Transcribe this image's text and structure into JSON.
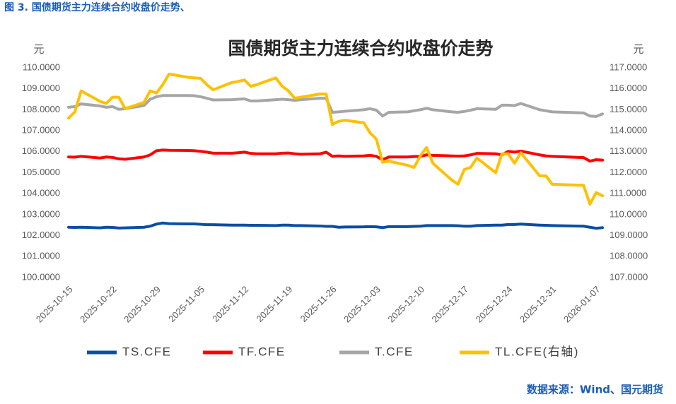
{
  "caption": "图 3. 国债期货主力连续合约收盘价走势、",
  "source": "数据来源：Wind、国元期货",
  "chart_data": {
    "type": "line",
    "title": "国债期货主力连续合约收盘价走势",
    "ylabel": "元",
    "y2label": "元",
    "grid": false,
    "legend": "bottom",
    "x": [
      "2025-10-15",
      "2025-10-16",
      "2025-10-17",
      "2025-10-20",
      "2025-10-21",
      "2025-10-22",
      "2025-10-23",
      "2025-10-24",
      "2025-10-27",
      "2025-10-28",
      "2025-10-29",
      "2025-10-30",
      "2025-10-31",
      "2025-11-03",
      "2025-11-04",
      "2025-11-05",
      "2025-11-06",
      "2025-11-07",
      "2025-11-10",
      "2025-11-11",
      "2025-11-12",
      "2025-11-13",
      "2025-11-14",
      "2025-11-17",
      "2025-11-18",
      "2025-11-19",
      "2025-11-20",
      "2025-11-21",
      "2025-11-24",
      "2025-11-25",
      "2025-11-26",
      "2025-11-27",
      "2025-11-28",
      "2025-12-01",
      "2025-12-02",
      "2025-12-03",
      "2025-12-04",
      "2025-12-05",
      "2025-12-08",
      "2025-12-09",
      "2025-12-10",
      "2025-12-11",
      "2025-12-12",
      "2025-12-15",
      "2025-12-16",
      "2025-12-17",
      "2025-12-18",
      "2025-12-19",
      "2025-12-22",
      "2025-12-23",
      "2025-12-24",
      "2025-12-25",
      "2025-12-26",
      "2025-12-29",
      "2025-12-30",
      "2025-12-31",
      "2026-01-05",
      "2026-01-06",
      "2026-01-07",
      "2026-01-08"
    ],
    "xlim": [
      "2025-10-15",
      "2026-01-08"
    ],
    "xticks": [
      "2025-10-15",
      "2025-10-22",
      "2025-10-29",
      "2025-11-05",
      "2025-11-12",
      "2025-11-19",
      "2025-11-26",
      "2025-12-03",
      "2025-12-10",
      "2025-12-17",
      "2025-12-24",
      "2025-12-31",
      "2026-01-07"
    ],
    "ylim": [
      100,
      110
    ],
    "yticks": [
      {
        "value": 100,
        "label": "100.0000"
      },
      {
        "value": 101,
        "label": "101.0000"
      },
      {
        "value": 102,
        "label": "102.0000"
      },
      {
        "value": 103,
        "label": "103.0000"
      },
      {
        "value": 104,
        "label": "104.0000"
      },
      {
        "value": 105,
        "label": "105.0000"
      },
      {
        "value": 106,
        "label": "106.0000"
      },
      {
        "value": 107,
        "label": "107.0000"
      },
      {
        "value": 108,
        "label": "108.0000"
      },
      {
        "value": 109,
        "label": "109.0000"
      },
      {
        "value": 110,
        "label": "110.0000"
      }
    ],
    "y2lim": [
      107,
      117
    ],
    "y2ticks": [
      {
        "value": 107,
        "label": "107.0000"
      },
      {
        "value": 108,
        "label": "108.0000"
      },
      {
        "value": 109,
        "label": "109.0000"
      },
      {
        "value": 110,
        "label": "110.0000"
      },
      {
        "value": 111,
        "label": "111.0000"
      },
      {
        "value": 112,
        "label": "112.0000"
      },
      {
        "value": 113,
        "label": "113.0000"
      },
      {
        "value": 114,
        "label": "114.0000"
      },
      {
        "value": 115,
        "label": "115.0000"
      },
      {
        "value": 116,
        "label": "116.0000"
      },
      {
        "value": 117,
        "label": "117.0000"
      }
    ],
    "series": [
      {
        "name": "TS.CFE",
        "color": "#0b4ea2",
        "values": [
          102.4,
          102.39,
          102.4,
          102.37,
          102.4,
          102.39,
          102.36,
          102.37,
          102.4,
          102.45,
          102.55,
          102.6,
          102.57,
          102.56,
          102.56,
          102.54,
          102.52,
          102.52,
          102.5,
          102.5,
          102.5,
          102.49,
          102.49,
          102.48,
          102.5,
          102.5,
          102.48,
          102.48,
          102.46,
          102.44,
          102.44,
          102.4,
          102.41,
          102.42,
          102.43,
          102.42,
          102.38,
          102.43,
          102.43,
          102.44,
          102.45,
          102.48,
          102.48,
          102.48,
          102.47,
          102.45,
          102.45,
          102.48,
          102.5,
          102.5,
          102.53,
          102.53,
          102.55,
          102.5,
          102.49,
          102.48,
          102.45,
          102.4,
          102.35,
          102.38
        ]
      },
      {
        "name": "TF.CFE",
        "color": "#ff0000",
        "values": [
          105.75,
          105.74,
          105.78,
          105.7,
          105.75,
          105.73,
          105.66,
          105.64,
          105.75,
          105.85,
          106.05,
          106.08,
          106.07,
          106.06,
          106.05,
          106.02,
          105.98,
          105.93,
          105.93,
          105.95,
          105.98,
          105.92,
          105.9,
          105.9,
          105.93,
          105.94,
          105.9,
          105.88,
          105.9,
          105.98,
          105.78,
          105.8,
          105.78,
          105.8,
          105.83,
          105.78,
          105.62,
          105.75,
          105.75,
          105.77,
          105.78,
          105.85,
          105.83,
          105.8,
          105.79,
          105.8,
          105.85,
          105.92,
          105.9,
          105.85,
          106.02,
          105.98,
          106.03,
          105.85,
          105.8,
          105.78,
          105.72,
          105.55,
          105.62,
          105.6
        ]
      },
      {
        "name": "T.CFE",
        "color": "#a6a6a6",
        "values": [
          108.12,
          108.15,
          108.28,
          108.18,
          108.12,
          108.15,
          108.02,
          108.05,
          108.2,
          108.5,
          108.62,
          108.68,
          108.68,
          108.68,
          108.67,
          108.62,
          108.55,
          108.47,
          108.48,
          108.5,
          108.52,
          108.42,
          108.42,
          108.48,
          108.5,
          108.48,
          108.45,
          108.48,
          108.55,
          108.55,
          107.88,
          107.9,
          107.93,
          108.0,
          108.05,
          107.98,
          107.7,
          107.88,
          107.9,
          107.95,
          108.0,
          108.07,
          108.0,
          107.9,
          107.88,
          107.92,
          107.98,
          108.05,
          108.02,
          108.22,
          108.22,
          108.2,
          108.3,
          108.0,
          107.95,
          107.9,
          107.85,
          107.7,
          107.68,
          107.8
        ]
      },
      {
        "name": "TL.CFE(右轴)",
        "color": "#ffc000",
        "axis": "y2",
        "values": [
          114.6,
          114.9,
          115.9,
          115.4,
          115.3,
          115.6,
          115.6,
          115.05,
          115.35,
          115.9,
          115.8,
          116.2,
          116.7,
          116.55,
          116.52,
          116.5,
          116.2,
          115.95,
          116.3,
          116.35,
          116.42,
          116.12,
          116.2,
          116.52,
          116.12,
          115.9,
          115.55,
          115.6,
          115.75,
          115.75,
          114.3,
          114.45,
          114.5,
          114.38,
          113.9,
          113.6,
          112.5,
          112.55,
          112.35,
          112.25,
          112.8,
          113.2,
          112.45,
          111.65,
          111.45,
          112.15,
          112.25,
          112.7,
          112.0,
          112.9,
          112.9,
          112.45,
          112.95,
          111.85,
          111.85,
          111.45,
          111.4,
          110.5,
          111.05,
          110.9
        ]
      }
    ]
  }
}
